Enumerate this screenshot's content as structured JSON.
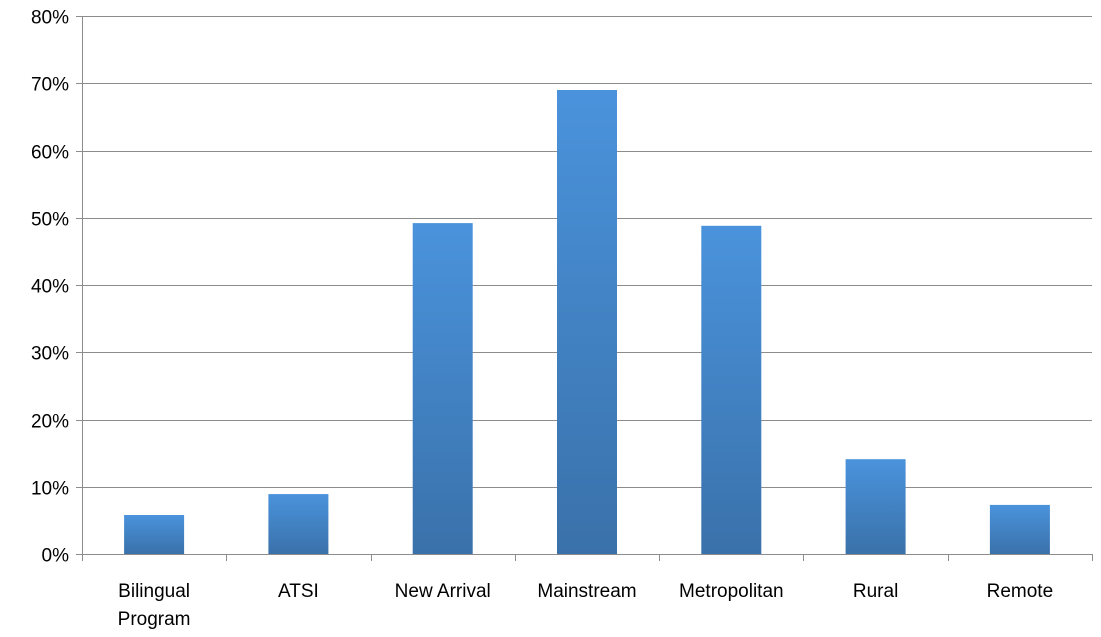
{
  "chart_data": {
    "type": "bar",
    "title": "",
    "xlabel": "",
    "ylabel": "",
    "categories": [
      [
        "Bilingual",
        "Program"
      ],
      [
        "ATSI"
      ],
      [
        "New Arrival"
      ],
      [
        "Mainstream"
      ],
      [
        "Metropolitan"
      ],
      [
        "Rural"
      ],
      [
        "Remote"
      ]
    ],
    "values": [
      0.058,
      0.089,
      0.492,
      0.69,
      0.488,
      0.141,
      0.073
    ],
    "ylim": [
      0,
      0.8
    ],
    "yticks": [
      {
        "value": 0.0,
        "label": "0%"
      },
      {
        "value": 0.1,
        "label": "10%"
      },
      {
        "value": 0.2,
        "label": "20%"
      },
      {
        "value": 0.3,
        "label": "30%"
      },
      {
        "value": 0.4,
        "label": "40%"
      },
      {
        "value": 0.5,
        "label": "50%"
      },
      {
        "value": 0.6,
        "label": "60%"
      },
      {
        "value": 0.7,
        "label": "70%"
      },
      {
        "value": 0.8,
        "label": "80%"
      }
    ],
    "grid": true,
    "legend": "none",
    "colors": {
      "bar_top": "#4a93dc",
      "bar_bottom": "#3a71aa",
      "gridline": "#8c8c8c",
      "axis": "#8c8c8c",
      "text": "#000000"
    }
  }
}
